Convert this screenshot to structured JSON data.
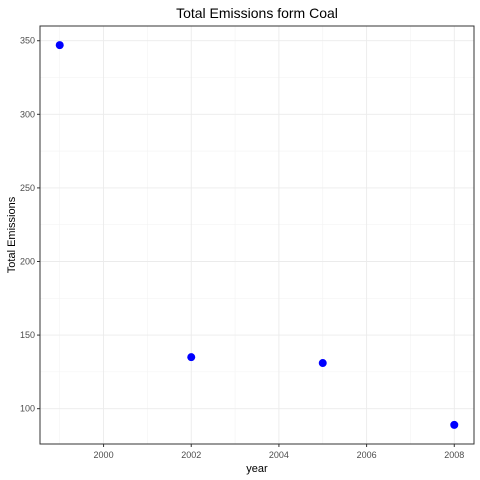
{
  "chart_data": {
    "type": "scatter",
    "title": "Total Emissions form Coal",
    "xlabel": "year",
    "ylabel": "Total Emissions",
    "x": [
      1999,
      2002,
      2005,
      2008
    ],
    "y": [
      347,
      135,
      131,
      89
    ],
    "xlim": [
      1998.55,
      2008.45
    ],
    "ylim": [
      76,
      360
    ],
    "xticks": [
      2000,
      2002,
      2004,
      2006,
      2008
    ],
    "yticks": [
      100,
      150,
      200,
      250,
      300,
      350
    ],
    "xtick_labels": [
      "2000",
      "2002",
      "2004",
      "2006",
      "2008"
    ],
    "ytick_labels": [
      "100",
      "150",
      "200",
      "250",
      "300",
      "350"
    ],
    "point_color": "#0000ff",
    "grid": true,
    "legend": "none"
  }
}
